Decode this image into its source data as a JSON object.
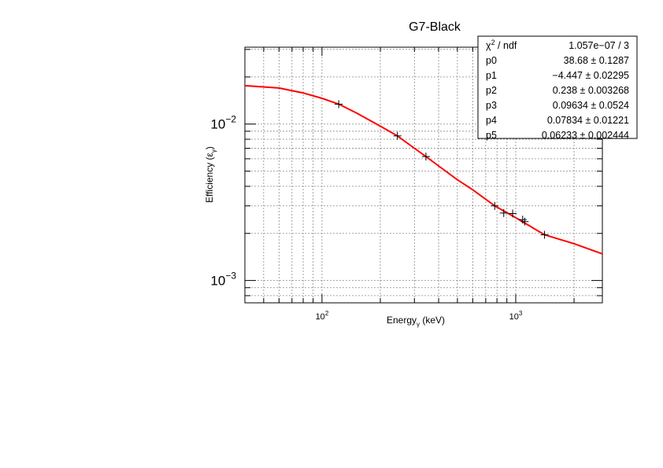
{
  "chart_data": {
    "type": "scatter",
    "title": "G7-Black",
    "xlabel_main": "Energy",
    "xlabel_sub": "γ",
    "xlabel_unit": "(keV)",
    "ylabel_main": "Efficiency (ε",
    "ylabel_sub": "γ",
    "ylabel_close": ")",
    "x_scale": "log",
    "y_scale": "log",
    "xlim": [
      40,
      2800
    ],
    "ylim": [
      0.00072,
      0.031
    ],
    "grid": true,
    "x_ticks": [
      {
        "value": 100,
        "base": "10",
        "exp": "2"
      },
      {
        "value": 1000,
        "base": "10",
        "exp": "3"
      }
    ],
    "y_ticks": [
      {
        "value": 0.001,
        "base": "10",
        "exp": "−3"
      },
      {
        "value": 0.01,
        "base": "10",
        "exp": "−2"
      }
    ],
    "points": [
      {
        "x": 122,
        "y": 0.0134
      },
      {
        "x": 245,
        "y": 0.0084
      },
      {
        "x": 344,
        "y": 0.0062
      },
      {
        "x": 779,
        "y": 0.003
      },
      {
        "x": 867,
        "y": 0.0027
      },
      {
        "x": 964,
        "y": 0.00268
      },
      {
        "x": 1086,
        "y": 0.00245
      },
      {
        "x": 1112,
        "y": 0.00238
      },
      {
        "x": 1408,
        "y": 0.00196
      }
    ],
    "fit": {
      "color": "#ff0000",
      "curve": [
        {
          "x": 40,
          "y": 0.0176
        },
        {
          "x": 60,
          "y": 0.017
        },
        {
          "x": 80,
          "y": 0.0158
        },
        {
          "x": 100,
          "y": 0.0146
        },
        {
          "x": 122,
          "y": 0.0134
        },
        {
          "x": 150,
          "y": 0.0118
        },
        {
          "x": 200,
          "y": 0.0097
        },
        {
          "x": 245,
          "y": 0.0084
        },
        {
          "x": 300,
          "y": 0.007
        },
        {
          "x": 344,
          "y": 0.0062
        },
        {
          "x": 400,
          "y": 0.0054
        },
        {
          "x": 500,
          "y": 0.0044
        },
        {
          "x": 600,
          "y": 0.0038
        },
        {
          "x": 779,
          "y": 0.003
        },
        {
          "x": 1000,
          "y": 0.00252
        },
        {
          "x": 1408,
          "y": 0.00196
        },
        {
          "x": 2000,
          "y": 0.00172
        },
        {
          "x": 2800,
          "y": 0.00148
        }
      ]
    },
    "stats_box": {
      "header": {
        "label_base": "χ",
        "label_sup": "2",
        "label_rest": " / ndf",
        "value": "1.057e−07 / 3"
      },
      "rows": [
        {
          "label": "p0",
          "value": "38.68 ± 0.1287"
        },
        {
          "label": "p1",
          "value": "−4.447 ± 0.02295"
        },
        {
          "label": "p2",
          "value": "0.238 ± 0.003268"
        },
        {
          "label": "p3",
          "value": "0.09634 ± 0.0524"
        },
        {
          "label": "p4",
          "value": "0.07834 ± 0.01221"
        },
        {
          "label": "p5",
          "value": "0.06233 ± 0.002444"
        }
      ]
    }
  }
}
